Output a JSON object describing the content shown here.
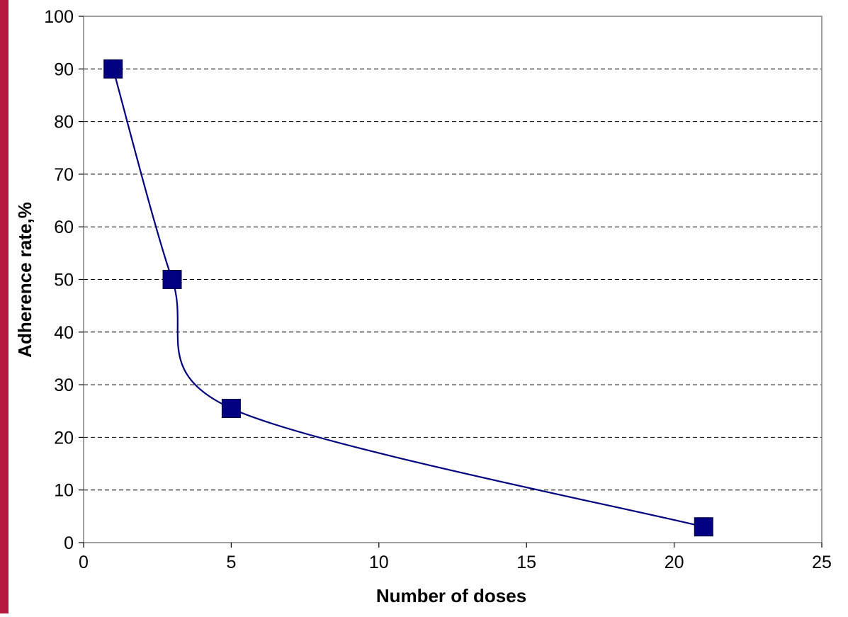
{
  "chart_data": {
    "type": "line",
    "xlabel": "Number of doses",
    "ylabel": "Adherence rate,%",
    "xlim": [
      0,
      25
    ],
    "ylim": [
      0,
      100
    ],
    "xticks": [
      0,
      5,
      10,
      15,
      20,
      25
    ],
    "yticks": [
      0,
      10,
      20,
      30,
      40,
      50,
      60,
      70,
      80,
      90,
      100
    ],
    "grid": "horizontal dashed",
    "legend": "none",
    "series": [
      {
        "x": [
          1,
          3,
          5,
          21
        ],
        "y": [
          90,
          50,
          25.5,
          3
        ],
        "color": "#000080",
        "marker": "square",
        "smoothed": true
      }
    ]
  },
  "colors": {
    "accent_border": "#b5173e",
    "series": "#000080",
    "grid": "#000000"
  }
}
